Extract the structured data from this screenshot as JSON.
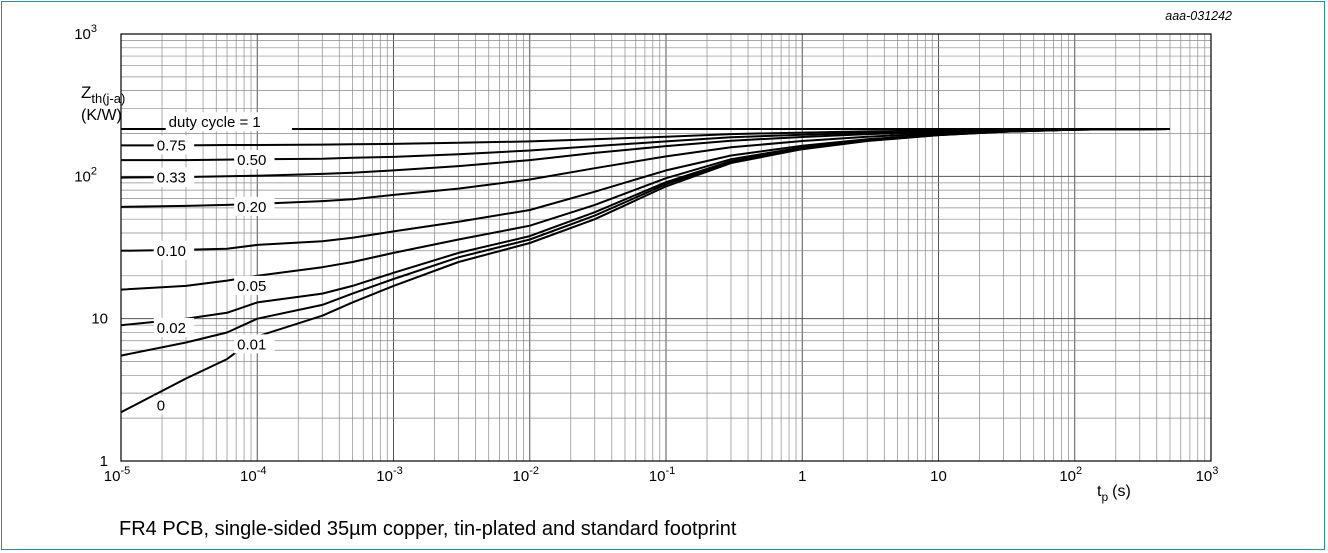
{
  "chart_data": {
    "type": "line",
    "title": "",
    "figure_code": "aaa-031242",
    "caption": "FR4 PCB, single-sided 35µm copper, tin-plated and standard footprint",
    "ylabel": {
      "main": "Z",
      "sub": "th(j-a)",
      "unit": "(K/W)"
    },
    "xlabel": {
      "main": "t",
      "sub": "p",
      "unit": "(s)"
    },
    "xscale": "log",
    "yscale": "log",
    "xlim": [
      1e-05,
      1000
    ],
    "ylim": [
      1,
      1000
    ],
    "grid": true,
    "x_ticks": [
      {
        "base": "10",
        "exp": "-5"
      },
      {
        "base": "10",
        "exp": "-4"
      },
      {
        "base": "10",
        "exp": "-3"
      },
      {
        "base": "10",
        "exp": "-2"
      },
      {
        "base": "10",
        "exp": "-1"
      },
      {
        "base": "1",
        "exp": ""
      },
      {
        "base": "10",
        "exp": ""
      },
      {
        "base": "10",
        "exp": "2"
      },
      {
        "base": "10",
        "exp": "3"
      }
    ],
    "y_ticks": [
      {
        "base": "1",
        "exp": ""
      },
      {
        "base": "10",
        "exp": ""
      },
      {
        "base": "10",
        "exp": "2"
      },
      {
        "base": "10",
        "exp": "3"
      }
    ],
    "x": [
      1e-05,
      3e-05,
      6e-05,
      0.0001,
      0.0003,
      0.0005,
      0.001,
      0.003,
      0.01,
      0.03,
      0.1,
      0.3,
      1,
      3,
      10,
      30,
      100,
      500
    ],
    "series": [
      {
        "name": "duty cycle = 1",
        "values": [
          215,
          215,
          215,
          215,
          215,
          215,
          215,
          215,
          215,
          215,
          215,
          215,
          215,
          215,
          215,
          215,
          215,
          215
        ]
      },
      {
        "name": "0.75",
        "values": [
          165,
          165,
          166,
          166,
          167,
          168,
          169,
          172,
          176,
          182,
          190,
          198,
          203,
          207,
          210,
          212,
          214,
          215
        ]
      },
      {
        "name": "0.50",
        "values": [
          130,
          130,
          131,
          132,
          133,
          135,
          137,
          143,
          152,
          163,
          176,
          188,
          196,
          202,
          207,
          211,
          214,
          215
        ]
      },
      {
        "name": "0.33",
        "values": [
          98,
          99,
          100,
          101,
          104,
          106,
          110,
          118,
          130,
          146,
          163,
          178,
          189,
          198,
          205,
          210,
          214,
          215
        ]
      },
      {
        "name": "0.20",
        "values": [
          61,
          62,
          63,
          64,
          67,
          69,
          74,
          82,
          95,
          114,
          138,
          160,
          177,
          190,
          201,
          208,
          213,
          215
        ]
      },
      {
        "name": "0.10",
        "values": [
          30,
          30.5,
          31,
          33,
          35,
          37,
          41,
          48,
          58,
          78,
          110,
          140,
          164,
          182,
          197,
          207,
          213,
          215
        ]
      },
      {
        "name": "0.05",
        "values": [
          16,
          17,
          18.5,
          20,
          23,
          25,
          29,
          36,
          45,
          63,
          97,
          132,
          160,
          180,
          196,
          207,
          213,
          215
        ]
      },
      {
        "name": "0.02",
        "values": [
          9,
          10,
          11,
          13,
          15,
          17,
          21,
          29,
          38,
          56,
          91,
          128,
          158,
          179,
          196,
          206,
          213,
          215
        ]
      },
      {
        "name": "0.01",
        "values": [
          5.5,
          6.8,
          8,
          10,
          12.5,
          15,
          19,
          27,
          36,
          53,
          88,
          126,
          157,
          178,
          195,
          206,
          213,
          215
        ]
      },
      {
        "name": "0",
        "values": [
          2.2,
          3.8,
          5.2,
          7.5,
          10.5,
          13,
          17,
          25,
          34,
          50,
          85,
          124,
          155,
          177,
          195,
          206,
          213,
          215
        ]
      }
    ],
    "series_labels": [
      {
        "text": "duty cycle = 1",
        "at_x": 2.2e-05,
        "at_y": 240
      },
      {
        "text": "0.75",
        "at_x": 1.8e-05,
        "at_y": 165
      },
      {
        "text": "0.50",
        "at_x": 7e-05,
        "at_y": 130
      },
      {
        "text": "0.33",
        "at_x": 1.8e-05,
        "at_y": 98
      },
      {
        "text": "0.20",
        "at_x": 7e-05,
        "at_y": 61
      },
      {
        "text": "0.10",
        "at_x": 1.8e-05,
        "at_y": 30
      },
      {
        "text": "0.05",
        "at_x": 7e-05,
        "at_y": 17
      },
      {
        "text": "0.02",
        "at_x": 1.8e-05,
        "at_y": 8.6
      },
      {
        "text": "0.01",
        "at_x": 7e-05,
        "at_y": 6.6
      },
      {
        "text": "0",
        "at_x": 1.8e-05,
        "at_y": 2.45
      }
    ]
  }
}
